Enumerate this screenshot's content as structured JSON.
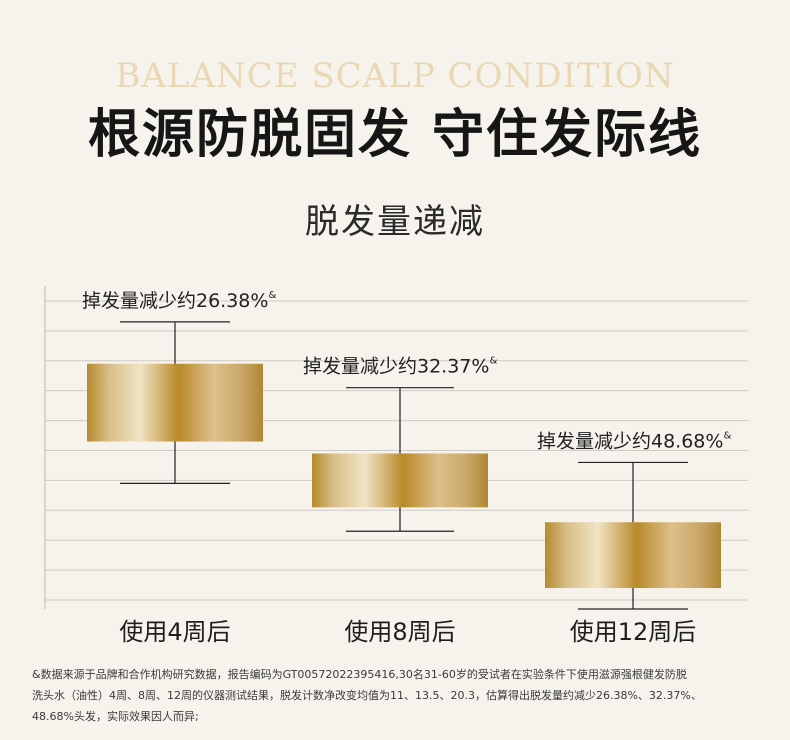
{
  "header": {
    "english_title": "BALANCE SCALP CONDITION",
    "main_title": "根源防脱固发  守住发际线"
  },
  "chart_data": {
    "type": "box",
    "title": "脱发量递减",
    "categories": [
      "使用4周后",
      "使用8周后",
      "使用12周后"
    ],
    "boxes": [
      {
        "category": "使用4周后",
        "whisker_high": 93,
        "box_high": 79,
        "box_low": 53,
        "whisker_low": 39,
        "label": "掉发量减少约26.38%"
      },
      {
        "category": "使用8周后",
        "whisker_high": 71,
        "box_high": 49,
        "box_low": 31,
        "whisker_low": 23,
        "label": "掉发量减少约32.37%"
      },
      {
        "category": "使用12周后",
        "whisker_high": 46,
        "box_high": 26,
        "box_low": 4,
        "whisker_low": -3,
        "label": "掉发量减少约48.68%"
      }
    ],
    "label_mark": "&",
    "ylim": [
      -3,
      105
    ],
    "y_gridlines": [
      0,
      10,
      20,
      30,
      40,
      50,
      60,
      70,
      80,
      90,
      100
    ],
    "grid": true,
    "xlabel": "",
    "ylabel": "",
    "colors": {
      "gold_dark": "#b48a2e",
      "gold_light": "#efe0bf",
      "grid": "#cfcac4",
      "axis": "#bdb7b0",
      "line": "#222222"
    }
  },
  "footnote": {
    "line1": "&数据来源于品牌和合作机构研究数据，报告编码为GT00572022395416,30名31-60岁的受试者在实验条件下使用滋源强根健发防脱",
    "line2": "洗头水（油性）4周、8周、12周的仪器测试结果，脱发计数净改变均值为11、13.5、20.3，估算得出脱发量约减少26.38%、32.37%、",
    "line3": "48.68%头发，实际效果因人而异;"
  }
}
